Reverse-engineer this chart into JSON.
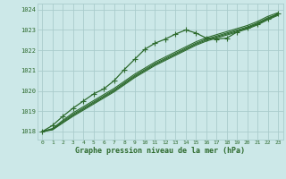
{
  "xlabel": "Graphe pression niveau de la mer (hPa)",
  "bg_color": "#cce8e8",
  "grid_color": "#aacccc",
  "line_color": "#2d6a2d",
  "xlim": [
    -0.5,
    23.5
  ],
  "ylim": [
    1017.6,
    1024.3
  ],
  "xticks": [
    0,
    1,
    2,
    3,
    4,
    5,
    6,
    7,
    8,
    9,
    10,
    11,
    12,
    13,
    14,
    15,
    16,
    17,
    18,
    19,
    20,
    21,
    22,
    23
  ],
  "yticks": [
    1018,
    1019,
    1020,
    1021,
    1022,
    1023,
    1024
  ],
  "marker_line": [
    1018.0,
    1018.3,
    1018.75,
    1019.15,
    1019.5,
    1019.85,
    1020.1,
    1020.5,
    1021.05,
    1021.55,
    1022.05,
    1022.35,
    1022.55,
    1022.8,
    1023.0,
    1022.85,
    1022.6,
    1022.55,
    1022.6,
    1022.9,
    1023.1,
    1023.3,
    1023.55,
    1023.8
  ],
  "plain_lines": [
    [
      1018.0,
      1018.1,
      1018.45,
      1018.8,
      1019.1,
      1019.4,
      1019.7,
      1020.0,
      1020.35,
      1020.7,
      1021.0,
      1021.3,
      1021.55,
      1021.8,
      1022.05,
      1022.3,
      1022.5,
      1022.65,
      1022.8,
      1022.95,
      1023.1,
      1023.3,
      1023.55,
      1023.75
    ],
    [
      1018.0,
      1018.12,
      1018.5,
      1018.85,
      1019.15,
      1019.45,
      1019.75,
      1020.05,
      1020.4,
      1020.75,
      1021.05,
      1021.35,
      1021.6,
      1021.85,
      1022.1,
      1022.35,
      1022.55,
      1022.7,
      1022.85,
      1023.0,
      1023.15,
      1023.35,
      1023.6,
      1023.78
    ],
    [
      1018.0,
      1018.08,
      1018.42,
      1018.75,
      1019.05,
      1019.35,
      1019.65,
      1019.95,
      1020.3,
      1020.65,
      1020.95,
      1021.25,
      1021.5,
      1021.75,
      1022.0,
      1022.25,
      1022.45,
      1022.6,
      1022.75,
      1022.9,
      1023.05,
      1023.25,
      1023.5,
      1023.72
    ],
    [
      1018.0,
      1018.15,
      1018.55,
      1018.92,
      1019.22,
      1019.52,
      1019.82,
      1020.12,
      1020.47,
      1020.82,
      1021.12,
      1021.42,
      1021.67,
      1021.92,
      1022.17,
      1022.42,
      1022.62,
      1022.77,
      1022.92,
      1023.07,
      1023.22,
      1023.42,
      1023.67,
      1023.85
    ]
  ]
}
